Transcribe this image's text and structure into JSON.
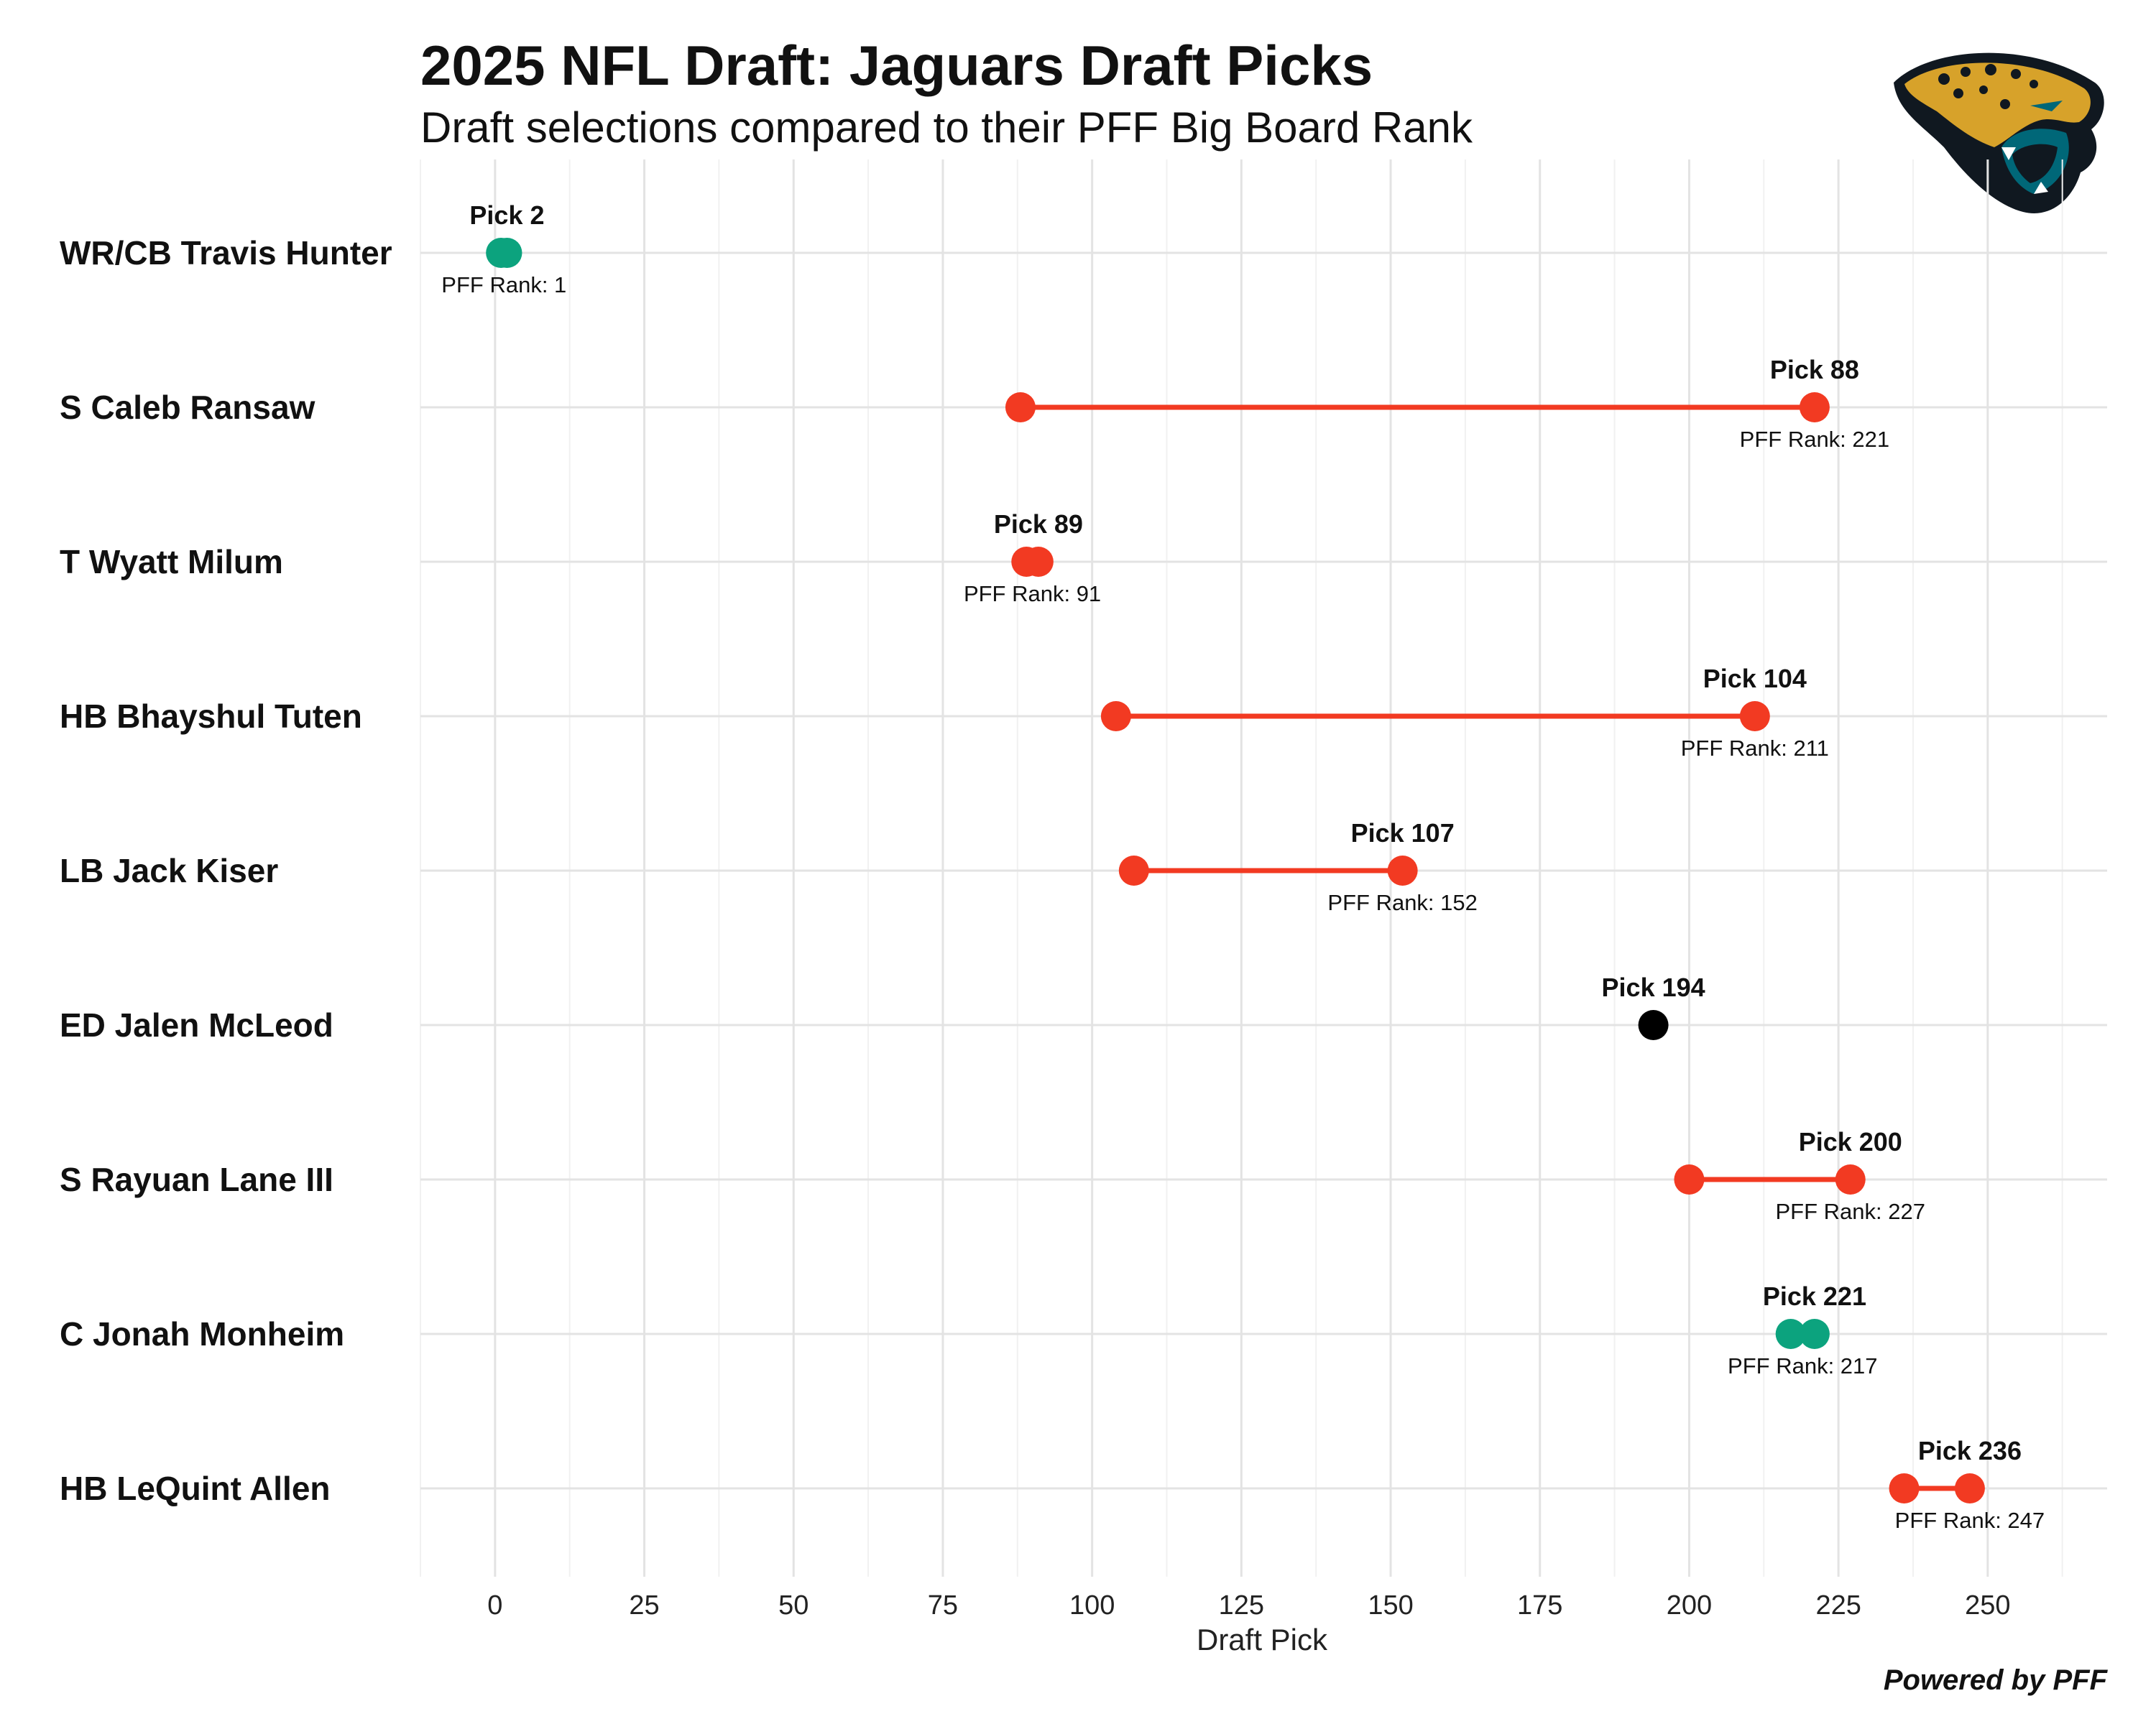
{
  "header": {
    "title": "2025 NFL Draft: Jaguars Draft Picks",
    "subtitle": "Draft selections compared to their PFF Big Board Rank"
  },
  "footer": {
    "credit": "Powered by PFF"
  },
  "logo": {
    "icon": "jaguar-head-logo-icon",
    "colors": {
      "gold": "#D7A22A",
      "teal": "#006778",
      "black": "#101820",
      "white": "#ffffff"
    }
  },
  "chart_data": {
    "type": "dumbbell",
    "xlabel": "Draft Pick",
    "xlim": [
      -12.5,
      270
    ],
    "xticks": [
      0,
      25,
      50,
      75,
      100,
      125,
      150,
      175,
      200,
      225,
      250
    ],
    "grid": true,
    "colors": {
      "reach": "#F23A22",
      "value": "#0CA37E",
      "no_rank": "#000000"
    },
    "players": [
      {
        "name": "WR/CB Travis Hunter",
        "pick": 2,
        "pff_rank": 1,
        "pick_label": "Pick 2",
        "rank_label": "PFF Rank: 1",
        "status": "value"
      },
      {
        "name": "S Caleb Ransaw",
        "pick": 88,
        "pff_rank": 221,
        "pick_label": "Pick 88",
        "rank_label": "PFF Rank: 221",
        "status": "reach"
      },
      {
        "name": "T Wyatt Milum",
        "pick": 89,
        "pff_rank": 91,
        "pick_label": "Pick 89",
        "rank_label": "PFF Rank: 91",
        "status": "reach"
      },
      {
        "name": "HB Bhayshul Tuten",
        "pick": 104,
        "pff_rank": 211,
        "pick_label": "Pick 104",
        "rank_label": "PFF Rank: 211",
        "status": "reach"
      },
      {
        "name": "LB Jack Kiser",
        "pick": 107,
        "pff_rank": 152,
        "pick_label": "Pick 107",
        "rank_label": "PFF Rank: 152",
        "status": "reach"
      },
      {
        "name": "ED Jalen McLeod",
        "pick": 194,
        "pff_rank": null,
        "pick_label": "Pick 194",
        "rank_label": null,
        "status": "no_rank"
      },
      {
        "name": "S Rayuan Lane III",
        "pick": 200,
        "pff_rank": 227,
        "pick_label": "Pick 200",
        "rank_label": "PFF Rank: 227",
        "status": "reach"
      },
      {
        "name": "C Jonah Monheim",
        "pick": 221,
        "pff_rank": 217,
        "pick_label": "Pick 221",
        "rank_label": "PFF Rank: 217",
        "status": "value"
      },
      {
        "name": "HB LeQuint Allen",
        "pick": 236,
        "pff_rank": 247,
        "pick_label": "Pick 236",
        "rank_label": "PFF Rank: 247",
        "status": "reach"
      }
    ]
  }
}
